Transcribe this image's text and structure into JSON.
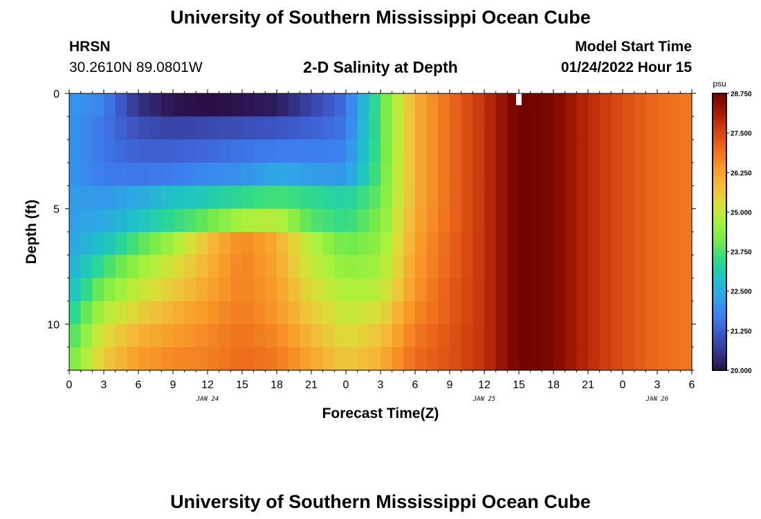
{
  "header": {
    "title": "University of Southern Mississippi Ocean Cube",
    "station": "HRSN",
    "coords": "30.2610N  89.0801W",
    "subtitle": "2-D Salinity at Depth",
    "model_label": "Model Start Time",
    "model_time": "01/24/2022 Hour 15"
  },
  "footer": {
    "title": "University of Southern Mississippi Ocean Cube"
  },
  "colors": {
    "ramp": [
      "#2a0f45",
      "#35378e",
      "#3e58c9",
      "#3d80f0",
      "#2ea6e6",
      "#1fc3c4",
      "#2ed98c",
      "#73ea4a",
      "#a6f23c",
      "#d8df38",
      "#f4bc3a",
      "#f89628",
      "#ec6a1c",
      "#d1410f",
      "#a31905",
      "#6f0200"
    ],
    "marker": "#ffffff"
  },
  "chart_data": {
    "type": "heatmap",
    "title": "2-D Salinity at Depth",
    "xlabel": "Forecast Time(Z)",
    "ylabel": "Depth (ft)",
    "x_tick_labels": [
      "0",
      "3",
      "6",
      "9",
      "12",
      "15",
      "18",
      "21",
      "0",
      "3",
      "6",
      "9",
      "12",
      "15",
      "18",
      "21",
      "0",
      "3",
      "6"
    ],
    "date_labels": [
      {
        "label": "JAN 24",
        "hour": 12
      },
      {
        "label": "JAN 25",
        "hour": 36
      },
      {
        "label": "JAN 26",
        "hour": 51
      }
    ],
    "x_range_hours": [
      0,
      54
    ],
    "y_ticks": [
      0,
      5,
      10
    ],
    "y_range_ft": [
      0,
      12
    ],
    "depth_levels": 12,
    "time_steps": 54,
    "current_time_hour": 39,
    "colorbar": {
      "unit": "psu",
      "min": 20.0,
      "max": 28.75,
      "tick_labels": [
        "28.750",
        "27.500",
        "26.250",
        "25.000",
        "23.750",
        "22.500",
        "21.250",
        "20.000"
      ],
      "tick_values": [
        28.75,
        27.5,
        26.25,
        25.0,
        23.75,
        22.5,
        21.25,
        20.0
      ]
    },
    "keyframes": [
      {
        "hour": 0,
        "salinity": [
          22.1,
          22.1,
          22.1,
          22.1,
          22.2,
          22.2,
          22.3,
          22.5,
          22.8,
          23.2,
          23.6,
          24.0
        ]
      },
      {
        "hour": 3,
        "salinity": [
          21.8,
          21.6,
          21.6,
          21.7,
          22.1,
          22.4,
          22.9,
          23.6,
          24.2,
          24.8,
          25.3,
          25.6
        ]
      },
      {
        "hour": 6,
        "salinity": [
          20.5,
          21.0,
          21.3,
          21.6,
          22.4,
          22.9,
          23.8,
          24.5,
          25.0,
          25.5,
          26.0,
          26.3
        ]
      },
      {
        "hour": 9,
        "salinity": [
          20.1,
          20.8,
          21.3,
          21.7,
          22.9,
          23.5,
          24.6,
          25.2,
          25.6,
          26.0,
          26.3,
          26.6
        ]
      },
      {
        "hour": 12,
        "salinity": [
          20.0,
          20.9,
          21.4,
          21.9,
          23.1,
          24.0,
          25.8,
          26.0,
          26.2,
          26.4,
          26.6,
          26.7
        ]
      },
      {
        "hour": 15,
        "salinity": [
          20.1,
          21.0,
          21.6,
          22.0,
          23.5,
          24.7,
          26.6,
          26.7,
          26.7,
          26.8,
          26.9,
          27.0
        ]
      },
      {
        "hour": 18,
        "salinity": [
          20.2,
          21.1,
          21.7,
          22.4,
          23.7,
          24.9,
          26.1,
          26.2,
          26.3,
          26.4,
          26.6,
          26.8
        ]
      },
      {
        "hour": 21,
        "salinity": [
          20.8,
          21.3,
          21.7,
          22.2,
          23.5,
          23.8,
          24.8,
          25.0,
          25.3,
          25.6,
          25.9,
          26.2
        ]
      },
      {
        "hour": 24,
        "salinity": [
          21.5,
          21.6,
          21.8,
          22.1,
          23.2,
          23.5,
          24.0,
          24.4,
          24.7,
          25.0,
          25.3,
          25.6
        ]
      },
      {
        "hour": 27,
        "salinity": [
          23.8,
          23.8,
          23.8,
          23.9,
          24.0,
          24.2,
          24.4,
          24.6,
          24.9,
          25.3,
          25.7,
          26.0
        ]
      },
      {
        "hour": 30,
        "salinity": [
          26.0,
          26.0,
          26.0,
          26.0,
          26.0,
          26.1,
          26.2,
          26.3,
          26.4,
          26.6,
          26.8,
          27.0
        ]
      },
      {
        "hour": 33,
        "salinity": [
          27.0,
          27.0,
          27.0,
          27.0,
          27.0,
          27.0,
          27.1,
          27.1,
          27.2,
          27.2,
          27.3,
          27.3
        ]
      },
      {
        "hour": 36,
        "salinity": [
          27.8,
          27.8,
          27.8,
          27.8,
          27.8,
          27.8,
          27.8,
          27.8,
          27.8,
          27.8,
          27.8,
          27.8
        ]
      },
      {
        "hour": 39,
        "salinity": [
          28.75,
          28.75,
          28.75,
          28.75,
          28.75,
          28.75,
          28.75,
          28.75,
          28.75,
          28.75,
          28.75,
          28.75
        ]
      },
      {
        "hour": 42,
        "salinity": [
          28.6,
          28.6,
          28.6,
          28.6,
          28.6,
          28.6,
          28.6,
          28.6,
          28.6,
          28.6,
          28.6,
          28.6
        ]
      },
      {
        "hour": 45,
        "salinity": [
          27.9,
          27.9,
          27.9,
          27.9,
          27.9,
          27.9,
          27.9,
          27.9,
          27.9,
          27.9,
          27.9,
          27.9
        ]
      },
      {
        "hour": 48,
        "salinity": [
          27.4,
          27.4,
          27.4,
          27.4,
          27.4,
          27.4,
          27.4,
          27.4,
          27.4,
          27.4,
          27.4,
          27.4
        ]
      },
      {
        "hour": 51,
        "salinity": [
          27.0,
          27.0,
          27.0,
          27.0,
          27.0,
          27.0,
          27.0,
          27.0,
          27.0,
          27.0,
          27.0,
          27.0
        ]
      },
      {
        "hour": 54,
        "salinity": [
          26.8,
          26.8,
          26.8,
          26.8,
          26.8,
          26.8,
          26.8,
          26.8,
          26.8,
          26.8,
          26.8,
          26.8
        ]
      }
    ]
  }
}
